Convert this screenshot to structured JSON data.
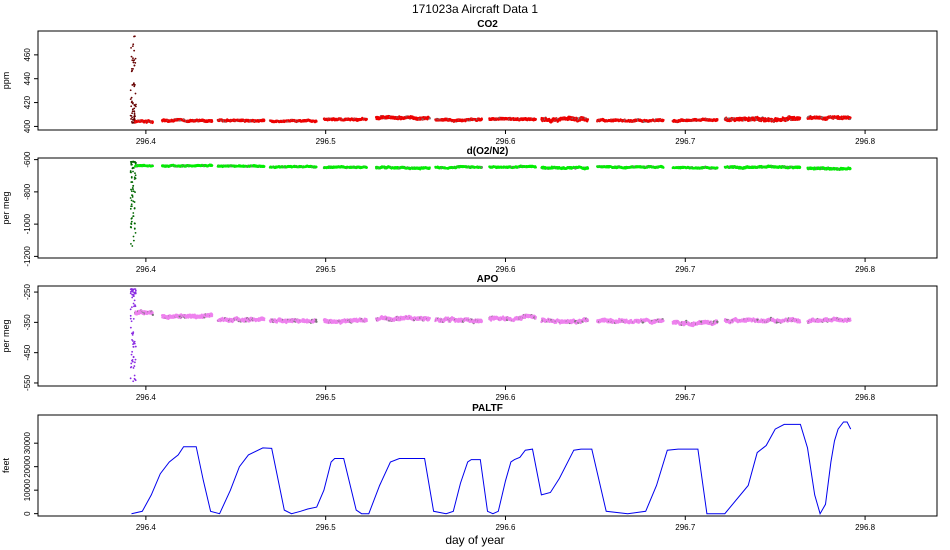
{
  "figure": {
    "title": "171023a   Aircraft Data 1",
    "xlabel": "day of year",
    "x_ticks": [
      296.4,
      296.5,
      296.6,
      296.7,
      296.8
    ],
    "x_range": [
      296.34,
      296.84
    ]
  },
  "chart_data": [
    {
      "type": "scatter",
      "title": "CO2",
      "ylabel": "ppm",
      "ylim": [
        397,
        480
      ],
      "y_ticks": [
        400,
        420,
        440,
        460
      ],
      "colors": {
        "main": "#ee0000",
        "early": "#660000",
        "alt": "#777777"
      },
      "spike": {
        "x": 296.393,
        "y_min": 403,
        "y_max": 476
      },
      "segments": [
        {
          "x": [
            296.394,
            296.404
          ],
          "y": 404,
          "noise": 1.5
        },
        {
          "x": [
            296.409,
            296.437
          ],
          "y": 405,
          "noise": 1.5
        },
        {
          "x": [
            296.44,
            296.466
          ],
          "y": 405,
          "noise": 1.5
        },
        {
          "x": [
            296.469,
            296.495
          ],
          "y": 404.5,
          "noise": 1.2
        },
        {
          "x": [
            296.499,
            296.523
          ],
          "y": 406,
          "noise": 1.5
        },
        {
          "x": [
            296.528,
            296.558
          ],
          "y": 407,
          "noise": 2.0
        },
        {
          "x": [
            296.561,
            296.587
          ],
          "y": 405.5,
          "noise": 1.5
        },
        {
          "x": [
            296.591,
            296.617
          ],
          "y": 406,
          "noise": 1.5
        },
        {
          "x": [
            296.62,
            296.646
          ],
          "y": 406,
          "noise": 2.5
        },
        {
          "x": [
            296.651,
            296.688
          ],
          "y": 405,
          "noise": 1.5
        },
        {
          "x": [
            296.693,
            296.718
          ],
          "y": 405,
          "noise": 1.5
        },
        {
          "x": [
            296.722,
            296.764
          ],
          "y": 406,
          "noise": 2.5
        },
        {
          "x": [
            296.768,
            296.792
          ],
          "y": 407,
          "noise": 2.0
        }
      ]
    },
    {
      "type": "scatter",
      "title": "d(O2/N2)",
      "ylabel": "per meg",
      "ylim": [
        -1210,
        -590
      ],
      "y_ticks": [
        -600,
        -800,
        -1000,
        -1200
      ],
      "colors": {
        "main": "#00ee00",
        "early": "#006600",
        "alt": "#777777"
      },
      "spike": {
        "x": 296.393,
        "y_min": -1185,
        "y_max": -610
      },
      "segments": [
        {
          "x": [
            296.394,
            296.404
          ],
          "y": -640,
          "noise": 8
        },
        {
          "x": [
            296.409,
            296.437
          ],
          "y": -638,
          "noise": 8
        },
        {
          "x": [
            296.44,
            296.466
          ],
          "y": -640,
          "noise": 8
        },
        {
          "x": [
            296.469,
            296.495
          ],
          "y": -645,
          "noise": 8
        },
        {
          "x": [
            296.499,
            296.523
          ],
          "y": -648,
          "noise": 8
        },
        {
          "x": [
            296.528,
            296.558
          ],
          "y": -650,
          "noise": 9
        },
        {
          "x": [
            296.561,
            296.587
          ],
          "y": -648,
          "noise": 8
        },
        {
          "x": [
            296.591,
            296.617
          ],
          "y": -645,
          "noise": 8
        },
        {
          "x": [
            296.62,
            296.646
          ],
          "y": -650,
          "noise": 10
        },
        {
          "x": [
            296.651,
            296.688
          ],
          "y": -645,
          "noise": 8
        },
        {
          "x": [
            296.693,
            296.718
          ],
          "y": -650,
          "noise": 8
        },
        {
          "x": [
            296.722,
            296.764
          ],
          "y": -648,
          "noise": 10
        },
        {
          "x": [
            296.768,
            296.792
          ],
          "y": -655,
          "noise": 10
        }
      ]
    },
    {
      "type": "scatter",
      "title": "APO",
      "ylabel": "per meg",
      "ylim": [
        -560,
        -230
      ],
      "y_ticks": [
        -250,
        -350,
        -450,
        -550
      ],
      "colors": {
        "main": "#ee82ee",
        "early": "#8a2be2",
        "alt": "#777777"
      },
      "spike": {
        "x": 296.393,
        "y_min": -545,
        "y_max": -240
      },
      "segments": [
        {
          "x": [
            296.394,
            296.404
          ],
          "y": -318,
          "noise": 10
        },
        {
          "x": [
            296.409,
            296.437
          ],
          "y": -330,
          "noise": 10
        },
        {
          "x": [
            296.44,
            296.466
          ],
          "y": -340,
          "noise": 10
        },
        {
          "x": [
            296.469,
            296.495
          ],
          "y": -345,
          "noise": 10
        },
        {
          "x": [
            296.499,
            296.523
          ],
          "y": -345,
          "noise": 10
        },
        {
          "x": [
            296.528,
            296.558
          ],
          "y": -338,
          "noise": 10
        },
        {
          "x": [
            296.561,
            296.587
          ],
          "y": -342,
          "noise": 10
        },
        {
          "x": [
            296.591,
            296.617
          ],
          "y": -335,
          "noise": 10
        },
        {
          "x": [
            296.62,
            296.646
          ],
          "y": -345,
          "noise": 10
        },
        {
          "x": [
            296.651,
            296.688
          ],
          "y": -345,
          "noise": 10
        },
        {
          "x": [
            296.693,
            296.718
          ],
          "y": -350,
          "noise": 10
        },
        {
          "x": [
            296.722,
            296.764
          ],
          "y": -343,
          "noise": 10
        },
        {
          "x": [
            296.768,
            296.792
          ],
          "y": -345,
          "noise": 10
        }
      ]
    },
    {
      "type": "line",
      "title": "PALTF",
      "ylabel": "feet",
      "ylim": [
        -1000,
        42000
      ],
      "y_ticks": [
        0,
        10000,
        20000,
        30000
      ],
      "colors": {
        "main": "#0000ee"
      },
      "x": [
        296.392,
        296.398,
        296.403,
        296.408,
        296.413,
        296.418,
        296.421,
        296.428,
        296.432,
        296.436,
        296.441,
        296.447,
        296.452,
        296.457,
        296.465,
        296.47,
        296.477,
        296.481,
        296.486,
        296.49,
        296.495,
        296.499,
        296.503,
        296.505,
        296.507,
        296.51,
        296.517,
        296.52,
        296.524,
        296.53,
        296.536,
        296.541,
        296.544,
        296.555,
        296.56,
        296.567,
        296.571,
        296.575,
        296.579,
        296.581,
        296.583,
        296.586,
        296.59,
        296.593,
        296.596,
        296.6,
        296.603,
        296.605,
        296.608,
        296.611,
        296.615,
        296.62,
        296.625,
        296.63,
        296.638,
        296.642,
        296.648,
        296.656,
        296.668,
        296.678,
        296.684,
        296.69,
        296.696,
        296.7,
        296.703,
        296.707,
        296.712,
        296.716,
        296.722,
        296.735,
        296.74,
        296.745,
        296.75,
        296.755,
        296.76,
        296.764,
        296.768,
        296.772,
        296.775,
        296.778,
        296.781,
        296.783,
        296.785,
        296.788,
        296.79,
        296.792
      ],
      "values": [
        0,
        1000,
        8000,
        17000,
        22000,
        25000,
        28500,
        28500,
        14000,
        1000,
        0,
        10000,
        20000,
        25000,
        28000,
        27800,
        1500,
        0,
        1000,
        2000,
        2800,
        10000,
        22000,
        23500,
        23500,
        23500,
        1500,
        0,
        0,
        12000,
        22000,
        23500,
        23500,
        23500,
        1000,
        0,
        1000,
        13000,
        22000,
        23000,
        23000,
        23000,
        1000,
        0,
        1000,
        14000,
        22000,
        23000,
        24000,
        27000,
        27500,
        8000,
        9000,
        15000,
        27000,
        27500,
        27500,
        1000,
        0,
        1000,
        12000,
        27000,
        27500,
        27500,
        27500,
        27500,
        0,
        0,
        0,
        12000,
        26000,
        29000,
        36000,
        38000,
        38000,
        38000,
        28000,
        8000,
        0,
        4000,
        22000,
        31000,
        36000,
        39000,
        39000,
        36000
      ]
    }
  ]
}
